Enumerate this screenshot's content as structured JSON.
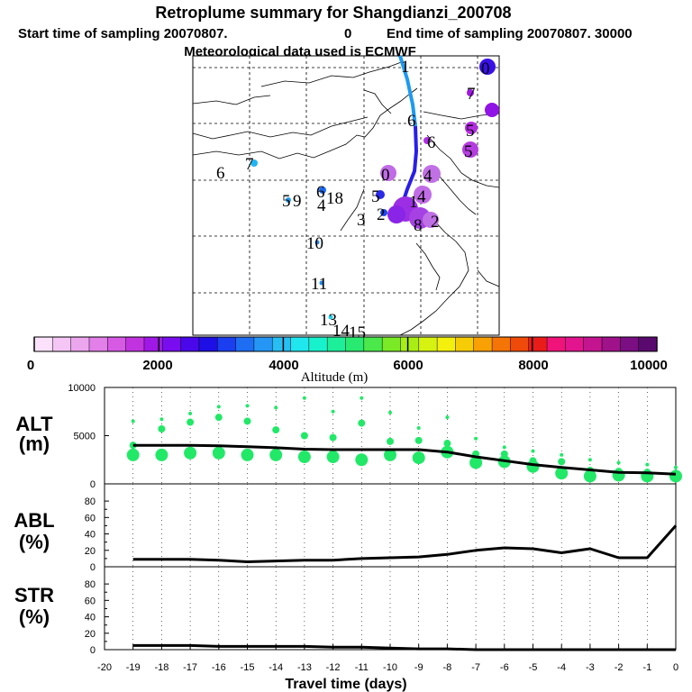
{
  "header": {
    "title": "Retroplume summary for Shangdianzi_200708",
    "start_label": "Start time of sampling 20070807.",
    "start_value": "0",
    "end_label": "End time of sampling 20070807. 30000",
    "met_line": "Meteorological data used is ECMWF"
  },
  "colorbar": {
    "title": "Altitude (m)",
    "ticks": [
      "0",
      "2000",
      "4000",
      "6000",
      "8000",
      "10000"
    ],
    "colors": [
      "#fbe1fb",
      "#f5c6f5",
      "#eca6ee",
      "#e27fe8",
      "#d65ae4",
      "#c233e0",
      "#a018e6",
      "#7a0df0",
      "#4a08ea",
      "#1e0fe6",
      "#1a3ef0",
      "#1e6ef4",
      "#2596f6",
      "#27bef4",
      "#20e6ee",
      "#18f2cc",
      "#1cee9a",
      "#28ea70",
      "#4ae84a",
      "#7aea26",
      "#a8ee14",
      "#d6f210",
      "#f2f00c",
      "#f6cc06",
      "#f8a004",
      "#f47406",
      "#f04a0a",
      "#ea1c1a",
      "#f0147a",
      "#e2148e",
      "#c41490",
      "#a0128a",
      "#7c0e84",
      "#5a0a6e"
    ]
  },
  "map": {
    "point_labels": [
      "0",
      "1",
      "2",
      "3",
      "4",
      "5",
      "6",
      "7",
      "8",
      "9",
      "10",
      "11",
      "12",
      "13",
      "14",
      "15",
      "16",
      "17",
      "18",
      "19"
    ]
  },
  "chart_data": [
    {
      "type": "line",
      "panel": "ALT",
      "ylabel": "ALT\n(m)",
      "ylabel_line1": "ALT",
      "ylabel_line2": "(m)",
      "ylim": [
        0,
        10000
      ],
      "yticks": [
        "10000",
        "5000",
        "0"
      ],
      "x": [
        -19,
        -18,
        -17,
        -16,
        -15,
        -14,
        -13,
        -12,
        -11,
        -10,
        -9,
        -8,
        -7,
        -6,
        -5,
        -4,
        -3,
        -2,
        -1,
        0
      ],
      "series": [
        {
          "name": "mean altitude",
          "values": [
            4000,
            4000,
            4000,
            3950,
            3850,
            3750,
            3600,
            3550,
            3550,
            3550,
            3550,
            3300,
            2800,
            2400,
            2000,
            1700,
            1450,
            1200,
            1150,
            1000
          ]
        }
      ],
      "spread_points": [
        {
          "x": -19,
          "values": [
            3000,
            4000,
            6500
          ]
        },
        {
          "x": -18,
          "values": [
            3000,
            5700,
            6700
          ]
        },
        {
          "x": -17,
          "values": [
            3200,
            6400,
            7300
          ]
        },
        {
          "x": -16,
          "values": [
            3200,
            6900,
            8000
          ]
        },
        {
          "x": -15,
          "values": [
            3000,
            6500,
            8100
          ]
        },
        {
          "x": -14,
          "values": [
            3000,
            5600,
            7900
          ]
        },
        {
          "x": -13,
          "values": [
            2800,
            5000,
            8900
          ]
        },
        {
          "x": -12,
          "values": [
            2800,
            4800,
            7500
          ]
        },
        {
          "x": -11,
          "values": [
            2500,
            6300,
            8900
          ]
        },
        {
          "x": -10,
          "values": [
            3000,
            4400,
            7400
          ]
        },
        {
          "x": -9,
          "values": [
            2700,
            4500,
            5800
          ]
        },
        {
          "x": -8,
          "values": [
            3300,
            4200,
            6900
          ]
        },
        {
          "x": -7,
          "values": [
            2200,
            3100,
            4700
          ]
        },
        {
          "x": -6,
          "values": [
            2300,
            3100,
            3800
          ]
        },
        {
          "x": -5,
          "values": [
            1800,
            2400,
            3400
          ]
        },
        {
          "x": -4,
          "values": [
            1100,
            2300,
            3000
          ]
        },
        {
          "x": -3,
          "values": [
            800,
            1400,
            2500
          ]
        },
        {
          "x": -2,
          "values": [
            900,
            1300,
            2200
          ]
        },
        {
          "x": -1,
          "values": [
            800,
            1200,
            2000
          ]
        },
        {
          "x": 0,
          "values": [
            800,
            1100,
            1700
          ]
        }
      ]
    },
    {
      "type": "line",
      "panel": "ABL",
      "ylabel_line1": "ABL",
      "ylabel_line2": "(%)",
      "ylim": [
        0,
        90
      ],
      "yticks": [
        "80",
        "60",
        "40",
        "20",
        "0"
      ],
      "x": [
        -19,
        -18,
        -17,
        -16,
        -15,
        -14,
        -13,
        -12,
        -11,
        -10,
        -9,
        -8,
        -7,
        -6,
        -5,
        -4,
        -3,
        -2,
        -1,
        0
      ],
      "series": [
        {
          "name": "ABL fraction",
          "values": [
            9,
            9,
            9,
            8,
            6,
            7,
            8,
            8,
            10,
            11,
            12,
            15,
            20,
            23,
            22,
            17,
            22,
            11,
            11,
            50
          ]
        }
      ]
    },
    {
      "type": "line",
      "panel": "STR",
      "ylabel_line1": "STR",
      "ylabel_line2": "(%)",
      "ylim": [
        0,
        90
      ],
      "yticks": [
        "80",
        "60",
        "40",
        "20",
        "0"
      ],
      "x": [
        -19,
        -18,
        -17,
        -16,
        -15,
        -14,
        -13,
        -12,
        -11,
        -10,
        -9,
        -8,
        -7,
        -6,
        -5,
        -4,
        -3,
        -2,
        -1,
        0
      ],
      "xlabel": "Travel time (days)",
      "xticks": [
        "-20",
        "-19",
        "-18",
        "-17",
        "-16",
        "-15",
        "-14",
        "-13",
        "-12",
        "-11",
        "-10",
        "-9",
        "-8",
        "-7",
        "-6",
        "-5",
        "-4",
        "-3",
        "-2",
        "-1",
        "0"
      ],
      "series": [
        {
          "name": "stratospheric fraction",
          "values": [
            5,
            5,
            5,
            4,
            4,
            4,
            4,
            3,
            3,
            2,
            1,
            1,
            0,
            0,
            0,
            0,
            0,
            0,
            0,
            0
          ]
        }
      ]
    }
  ]
}
